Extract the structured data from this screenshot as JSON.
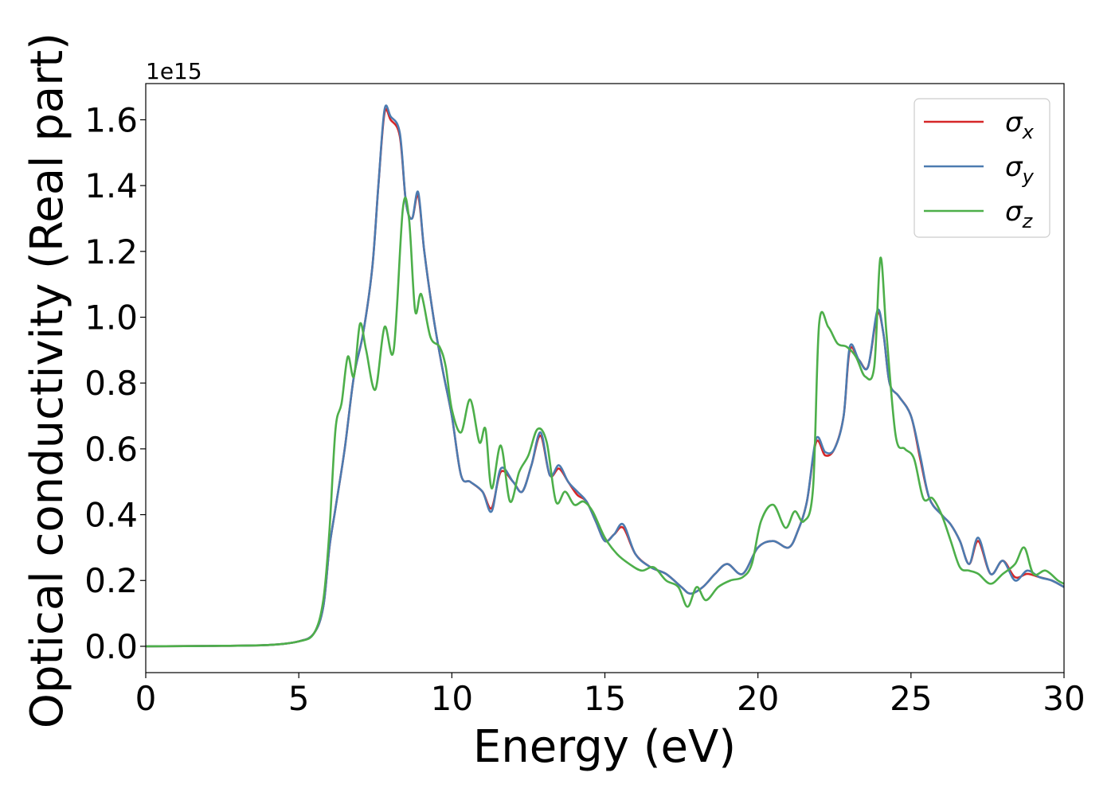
{
  "chart_data": {
    "type": "line",
    "xlabel": "Energy (eV)",
    "ylabel": "Optical conductivity (Real part)",
    "y_offset_label": "1e15",
    "xlim": [
      0,
      30
    ],
    "ylim": [
      -0.08,
      1.71
    ],
    "x_ticks": [
      0,
      5,
      10,
      15,
      20,
      25,
      30
    ],
    "y_ticks": [
      0.0,
      0.2,
      0.4,
      0.6,
      0.8,
      1.0,
      1.2,
      1.4,
      1.6
    ],
    "grid": false,
    "legend_position": "top-right",
    "series": [
      {
        "name": "σx",
        "legend_symbol": "σ",
        "legend_subscript": "x",
        "color": "#d62728",
        "x": [
          0,
          2,
          4,
          5,
          5.5,
          5.8,
          6.0,
          6.2,
          6.5,
          6.8,
          7.1,
          7.4,
          7.6,
          7.8,
          8.0,
          8.3,
          8.5,
          8.7,
          8.9,
          9.1,
          9.4,
          9.7,
          10.0,
          10.3,
          10.6,
          11.0,
          11.3,
          11.6,
          12.0,
          12.3,
          12.6,
          12.9,
          13.2,
          13.5,
          13.8,
          14.1,
          14.4,
          14.7,
          15.0,
          15.3,
          15.6,
          16.0,
          16.5,
          17.0,
          17.5,
          17.8,
          18.2,
          18.6,
          19.0,
          19.5,
          20.0,
          20.5,
          21.0,
          21.3,
          21.6,
          21.9,
          22.2,
          22.5,
          22.8,
          23.0,
          23.3,
          23.6,
          23.9,
          24.1,
          24.3,
          24.6,
          25.0,
          25.3,
          25.6,
          26.0,
          26.3,
          26.6,
          26.9,
          27.2,
          27.6,
          28.0,
          28.4,
          28.8,
          29.2,
          29.6,
          30.0
        ],
        "values": [
          0.0,
          0.001,
          0.004,
          0.015,
          0.04,
          0.12,
          0.3,
          0.42,
          0.6,
          0.82,
          0.95,
          1.15,
          1.4,
          1.62,
          1.6,
          1.55,
          1.35,
          1.3,
          1.37,
          1.2,
          1.0,
          0.84,
          0.7,
          0.52,
          0.5,
          0.47,
          0.42,
          0.53,
          0.5,
          0.47,
          0.55,
          0.64,
          0.52,
          0.54,
          0.5,
          0.46,
          0.44,
          0.38,
          0.32,
          0.34,
          0.36,
          0.28,
          0.24,
          0.22,
          0.18,
          0.16,
          0.18,
          0.22,
          0.25,
          0.22,
          0.3,
          0.32,
          0.3,
          0.35,
          0.44,
          0.62,
          0.58,
          0.6,
          0.7,
          0.9,
          0.87,
          0.85,
          1.01,
          0.95,
          0.8,
          0.76,
          0.7,
          0.57,
          0.45,
          0.4,
          0.37,
          0.32,
          0.25,
          0.32,
          0.22,
          0.26,
          0.21,
          0.22,
          0.21,
          0.2,
          0.18
        ]
      },
      {
        "name": "σy",
        "legend_symbol": "σ",
        "legend_subscript": "y",
        "color": "#4c7bb0",
        "x": [
          0,
          2,
          4,
          5,
          5.5,
          5.8,
          6.0,
          6.2,
          6.5,
          6.8,
          7.1,
          7.4,
          7.6,
          7.8,
          8.0,
          8.3,
          8.5,
          8.7,
          8.9,
          9.1,
          9.4,
          9.7,
          10.0,
          10.3,
          10.6,
          11.0,
          11.3,
          11.6,
          12.0,
          12.3,
          12.6,
          12.9,
          13.2,
          13.5,
          13.8,
          14.1,
          14.4,
          14.7,
          15.0,
          15.3,
          15.6,
          16.0,
          16.5,
          17.0,
          17.5,
          17.8,
          18.2,
          18.6,
          19.0,
          19.5,
          20.0,
          20.5,
          21.0,
          21.3,
          21.6,
          21.9,
          22.2,
          22.5,
          22.8,
          23.0,
          23.3,
          23.6,
          23.9,
          24.1,
          24.3,
          24.6,
          25.0,
          25.3,
          25.6,
          26.0,
          26.3,
          26.6,
          26.9,
          27.2,
          27.6,
          28.0,
          28.4,
          28.8,
          29.2,
          29.6,
          30.0
        ],
        "values": [
          0.0,
          0.001,
          0.004,
          0.015,
          0.04,
          0.12,
          0.3,
          0.42,
          0.6,
          0.82,
          0.95,
          1.15,
          1.4,
          1.63,
          1.61,
          1.56,
          1.35,
          1.3,
          1.38,
          1.2,
          1.0,
          0.84,
          0.7,
          0.52,
          0.5,
          0.47,
          0.41,
          0.54,
          0.5,
          0.47,
          0.55,
          0.65,
          0.52,
          0.55,
          0.5,
          0.47,
          0.44,
          0.38,
          0.32,
          0.34,
          0.37,
          0.28,
          0.24,
          0.22,
          0.18,
          0.16,
          0.18,
          0.22,
          0.25,
          0.22,
          0.3,
          0.32,
          0.3,
          0.35,
          0.44,
          0.63,
          0.59,
          0.6,
          0.7,
          0.91,
          0.87,
          0.85,
          1.02,
          0.95,
          0.8,
          0.76,
          0.7,
          0.58,
          0.45,
          0.4,
          0.37,
          0.32,
          0.25,
          0.33,
          0.22,
          0.26,
          0.2,
          0.23,
          0.21,
          0.2,
          0.18
        ]
      },
      {
        "name": "σz",
        "legend_symbol": "σ",
        "legend_subscript": "z",
        "color": "#4daf4a",
        "x": [
          0,
          2,
          4,
          5,
          5.5,
          5.8,
          6.0,
          6.2,
          6.4,
          6.6,
          6.8,
          7.0,
          7.2,
          7.5,
          7.8,
          8.1,
          8.4,
          8.6,
          8.8,
          9.0,
          9.3,
          9.6,
          9.8,
          10.0,
          10.3,
          10.6,
          10.9,
          11.1,
          11.3,
          11.6,
          11.9,
          12.2,
          12.5,
          12.8,
          13.1,
          13.4,
          13.7,
          14.0,
          14.3,
          14.6,
          15.0,
          15.4,
          15.8,
          16.2,
          16.6,
          17.0,
          17.4,
          17.7,
          18.0,
          18.3,
          18.7,
          19.1,
          19.5,
          19.8,
          20.1,
          20.5,
          20.9,
          21.2,
          21.5,
          21.8,
          22.0,
          22.3,
          22.6,
          22.9,
          23.2,
          23.5,
          23.8,
          24.0,
          24.2,
          24.5,
          24.8,
          25.1,
          25.4,
          25.7,
          26.0,
          26.3,
          26.6,
          26.9,
          27.2,
          27.6,
          28.0,
          28.4,
          28.7,
          29.0,
          29.4,
          29.8,
          30.0
        ],
        "values": [
          0.0,
          0.001,
          0.004,
          0.015,
          0.04,
          0.14,
          0.35,
          0.66,
          0.74,
          0.88,
          0.82,
          0.98,
          0.9,
          0.78,
          0.97,
          0.9,
          1.33,
          1.3,
          1.02,
          1.07,
          0.94,
          0.91,
          0.85,
          0.72,
          0.65,
          0.75,
          0.62,
          0.66,
          0.48,
          0.61,
          0.44,
          0.53,
          0.58,
          0.66,
          0.62,
          0.44,
          0.47,
          0.43,
          0.44,
          0.41,
          0.33,
          0.28,
          0.25,
          0.23,
          0.24,
          0.2,
          0.18,
          0.12,
          0.18,
          0.14,
          0.18,
          0.2,
          0.21,
          0.25,
          0.38,
          0.43,
          0.36,
          0.41,
          0.38,
          0.48,
          0.98,
          0.97,
          0.92,
          0.91,
          0.88,
          0.82,
          0.85,
          1.18,
          0.95,
          0.64,
          0.6,
          0.57,
          0.45,
          0.45,
          0.4,
          0.32,
          0.24,
          0.23,
          0.22,
          0.19,
          0.22,
          0.25,
          0.3,
          0.22,
          0.23,
          0.2,
          0.19
        ]
      }
    ]
  }
}
